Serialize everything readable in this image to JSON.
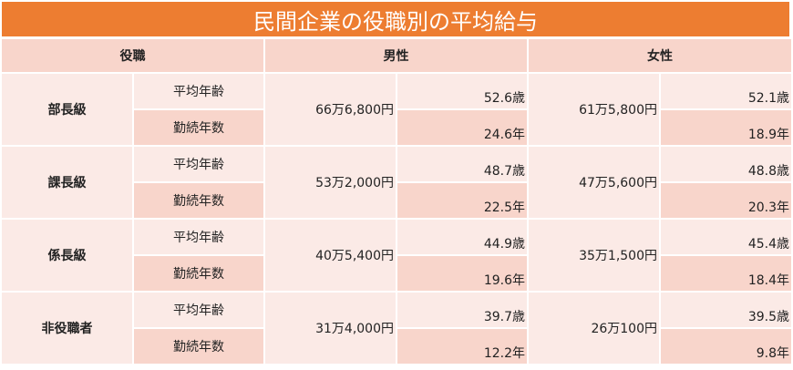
{
  "title": "民間企業の役職別の平均給与",
  "headers": {
    "rank": "役職",
    "male": "男性",
    "female": "女性"
  },
  "labels": {
    "age": "平均年齢",
    "tenure": "勤続年数"
  },
  "rows": [
    {
      "rank": "部長級",
      "male": {
        "salary": "66万6,800円",
        "age": "52.6歳",
        "tenure": "24.6年"
      },
      "female": {
        "salary": "61万5,800円",
        "age": "52.1歳",
        "tenure": "18.9年"
      }
    },
    {
      "rank": "課長級",
      "male": {
        "salary": "53万2,000円",
        "age": "48.7歳",
        "tenure": "22.5年"
      },
      "female": {
        "salary": "47万5,600円",
        "age": "48.8歳",
        "tenure": "20.3年"
      }
    },
    {
      "rank": "係長級",
      "male": {
        "salary": "40万5,400円",
        "age": "44.9歳",
        "tenure": "19.6年"
      },
      "female": {
        "salary": "35万1,500円",
        "age": "45.4歳",
        "tenure": "18.4年"
      }
    },
    {
      "rank": "非役職者",
      "male": {
        "salary": "31万4,000円",
        "age": "39.7歳",
        "tenure": "12.2年"
      },
      "female": {
        "salary": "26万100円",
        "age": "39.5歳",
        "tenure": "9.8年"
      }
    }
  ]
}
